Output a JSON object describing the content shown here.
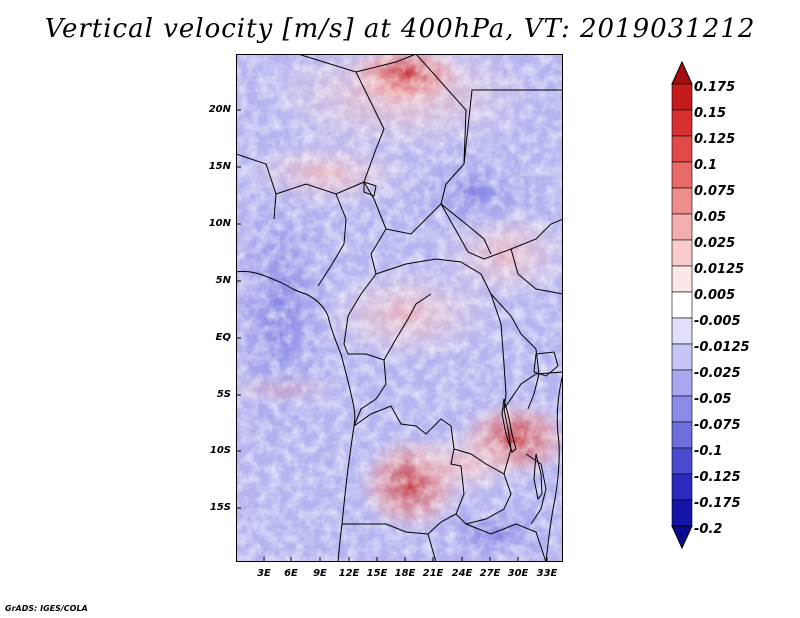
{
  "title": "Vertical velocity [m/s] at 400hPa, VT: 2019031212",
  "footer": "GrADS: IGES/COLA",
  "lat_labels": [
    "20N",
    "15N",
    "10N",
    "5N",
    "EQ",
    "5S",
    "10S",
    "15S"
  ],
  "lon_labels": [
    "3E",
    "6E",
    "9E",
    "12E",
    "15E",
    "18E",
    "21E",
    "24E",
    "27E",
    "30E",
    "33E"
  ],
  "colorbar": {
    "levels": [
      "0.175",
      "0.15",
      "0.125",
      "0.1",
      "0.075",
      "0.05",
      "0.025",
      "0.0125",
      "0.005",
      "-0.005",
      "-0.0125",
      "-0.025",
      "-0.05",
      "-0.075",
      "-0.1",
      "-0.125",
      "-0.175",
      "-0.2"
    ],
    "colors": [
      "#a50e0e",
      "#c41a1a",
      "#d83030",
      "#e24a4a",
      "#e96a6a",
      "#ef8c8c",
      "#f4aeae",
      "#f8cccc",
      "#fce6e6",
      "#ffffff",
      "#e0e0fa",
      "#c6c6f6",
      "#a8a8f0",
      "#8c8ce8",
      "#6e6ede",
      "#4a4ad0",
      "#2a2ac0",
      "#1414a8",
      "#0a0a90"
    ]
  },
  "colors": {
    "map_base": "#b8b8f2",
    "frame": "#000000",
    "border": "#000000"
  }
}
